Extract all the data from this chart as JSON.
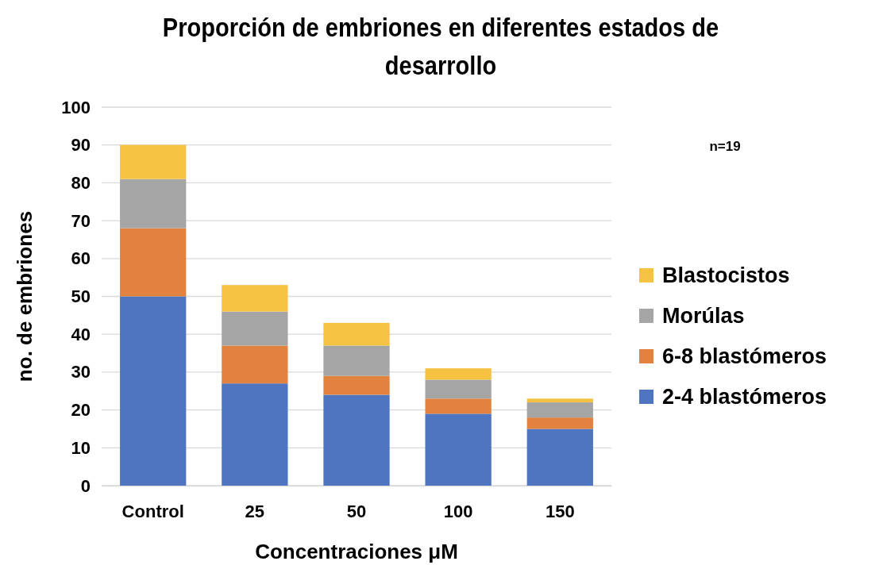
{
  "chart_data": {
    "type": "bar",
    "stacked": true,
    "title": "Proporción de embriones en diferentes estados de desarrollo",
    "xlabel": "Concentraciones μM",
    "ylabel": "no. de embriones",
    "categories": [
      "Control",
      "25",
      "50",
      "100",
      "150"
    ],
    "series": [
      {
        "name": "2-4 blastómeros",
        "color": "#4f74c0",
        "values": [
          50,
          27,
          24,
          19,
          15
        ]
      },
      {
        "name": "6-8 blastómeros",
        "color": "#e2823f",
        "values": [
          18,
          10,
          5,
          4,
          3
        ]
      },
      {
        "name": "Morúlas",
        "color": "#a5a5a5",
        "values": [
          13,
          9,
          8,
          5,
          4
        ]
      },
      {
        "name": "Blastocistos",
        "color": "#f5c242",
        "values": [
          9,
          7,
          6,
          3,
          1
        ]
      }
    ],
    "ylim": [
      0,
      100
    ],
    "yticks": [
      0,
      10,
      20,
      30,
      40,
      50,
      60,
      70,
      80,
      90,
      100
    ],
    "grid": "y",
    "legend": "right",
    "annotations": [
      "n=19"
    ]
  }
}
